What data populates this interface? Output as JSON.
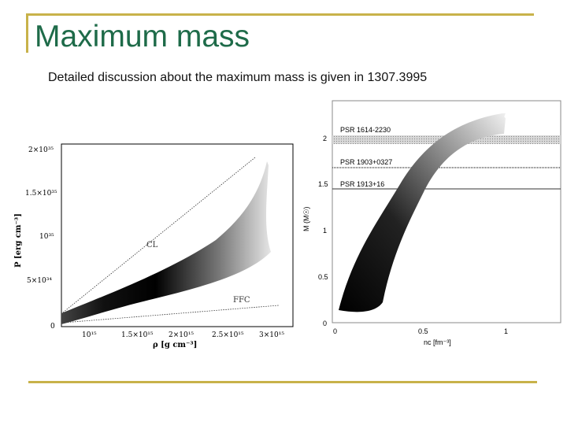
{
  "slide": {
    "title": "Maximum mass",
    "subtitle": "Detailed discussion about the maximum mass is given in 1307.3995"
  },
  "left_figure": {
    "ylabel": "P [erg cm⁻³]",
    "xlabel": "ρ [g cm⁻³]",
    "yticks": [
      "2×10³⁵",
      "1.5×10³⁵",
      "10³⁵",
      "5×10³⁴",
      "0"
    ],
    "xticks": [
      "10¹⁵",
      "1.5×10¹⁵",
      "2×10¹⁵",
      "2.5×10¹⁵",
      "3×10¹⁵"
    ],
    "annotations": [
      "CL",
      "FFC"
    ]
  },
  "right_figure": {
    "ylabel": "M (M☉)",
    "xlabel": "nc [fm⁻³]",
    "yticks": [
      "2",
      "1.5",
      "1",
      "0.5",
      "0"
    ],
    "xticks": [
      "0",
      "0.5",
      "1"
    ],
    "reference_bands": [
      {
        "label": "PSR 1614-2230"
      },
      {
        "label": "PSR 1903+0327"
      },
      {
        "label": "PSR 1913+16"
      }
    ]
  }
}
